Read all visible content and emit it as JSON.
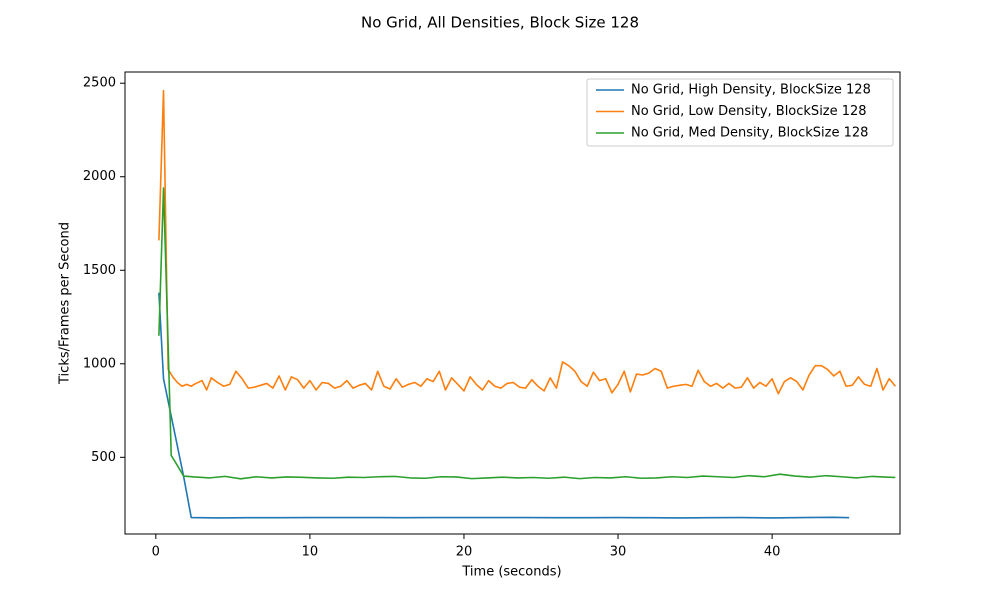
{
  "chart_data": {
    "type": "line",
    "title": "No Grid, All Densities, Block Size 128",
    "xlabel": "Time (seconds)",
    "ylabel": "Ticks/Frames per Second",
    "xlim": [
      -2.0,
      48.3
    ],
    "ylim": [
      90,
      2560
    ],
    "xticks": [
      0,
      10,
      20,
      30,
      40
    ],
    "yticks": [
      500,
      1000,
      1500,
      2000,
      2500
    ],
    "grid": false,
    "legend_position": "top-right",
    "series": [
      {
        "name": "No Grid, High Density, BlockSize 128",
        "color": "#1f77b4",
        "points": [
          [
            0.2,
            1380
          ],
          [
            0.5,
            920
          ],
          [
            1.8,
            400
          ],
          [
            2.3,
            178
          ],
          [
            4,
            176
          ],
          [
            6,
            177
          ],
          [
            8,
            177
          ],
          [
            10,
            178
          ],
          [
            12,
            178
          ],
          [
            14,
            178
          ],
          [
            16,
            177
          ],
          [
            18,
            178
          ],
          [
            20,
            178
          ],
          [
            22,
            178
          ],
          [
            24,
            178
          ],
          [
            26,
            177
          ],
          [
            28,
            177
          ],
          [
            30,
            178
          ],
          [
            32,
            177
          ],
          [
            34,
            176
          ],
          [
            36,
            177
          ],
          [
            38,
            178
          ],
          [
            40,
            176
          ],
          [
            42,
            178
          ],
          [
            44,
            179
          ],
          [
            45,
            177
          ]
        ]
      },
      {
        "name": "No Grid, Low Density, BlockSize 128",
        "color": "#ff7f0e",
        "points": [
          [
            0.2,
            1660
          ],
          [
            0.5,
            2460
          ],
          [
            0.8,
            970
          ],
          [
            1.1,
            930
          ],
          [
            1.4,
            900
          ],
          [
            1.7,
            880
          ],
          [
            2,
            890
          ],
          [
            2.3,
            880
          ],
          [
            2.6,
            895
          ],
          [
            3.0,
            910
          ],
          [
            3.3,
            860
          ],
          [
            3.6,
            925
          ],
          [
            4,
            900
          ],
          [
            4.4,
            880
          ],
          [
            4.8,
            890
          ],
          [
            5.2,
            960
          ],
          [
            5.6,
            920
          ],
          [
            6,
            870
          ],
          [
            6.4,
            875
          ],
          [
            6.8,
            885
          ],
          [
            7.2,
            895
          ],
          [
            7.6,
            870
          ],
          [
            8,
            935
          ],
          [
            8.4,
            860
          ],
          [
            8.8,
            930
          ],
          [
            9.2,
            915
          ],
          [
            9.6,
            870
          ],
          [
            10,
            910
          ],
          [
            10.4,
            860
          ],
          [
            10.8,
            900
          ],
          [
            11.2,
            895
          ],
          [
            11.6,
            870
          ],
          [
            12,
            880
          ],
          [
            12.4,
            910
          ],
          [
            12.8,
            870
          ],
          [
            13.2,
            885
          ],
          [
            13.6,
            895
          ],
          [
            14,
            860
          ],
          [
            14.4,
            960
          ],
          [
            14.8,
            880
          ],
          [
            15.2,
            865
          ],
          [
            15.6,
            920
          ],
          [
            16,
            875
          ],
          [
            16.4,
            890
          ],
          [
            16.8,
            900
          ],
          [
            17.2,
            880
          ],
          [
            17.6,
            920
          ],
          [
            18,
            905
          ],
          [
            18.4,
            960
          ],
          [
            18.8,
            860
          ],
          [
            19.2,
            925
          ],
          [
            19.6,
            890
          ],
          [
            20,
            855
          ],
          [
            20.4,
            930
          ],
          [
            20.8,
            890
          ],
          [
            21.2,
            860
          ],
          [
            21.6,
            910
          ],
          [
            22,
            880
          ],
          [
            22.4,
            870
          ],
          [
            22.8,
            895
          ],
          [
            23.2,
            900
          ],
          [
            23.6,
            875
          ],
          [
            24,
            870
          ],
          [
            24.4,
            915
          ],
          [
            24.8,
            880
          ],
          [
            25.2,
            855
          ],
          [
            25.6,
            925
          ],
          [
            26,
            870
          ],
          [
            26.4,
            1010
          ],
          [
            26.8,
            990
          ],
          [
            27.2,
            960
          ],
          [
            27.6,
            905
          ],
          [
            28,
            880
          ],
          [
            28.4,
            955
          ],
          [
            28.8,
            910
          ],
          [
            29.2,
            920
          ],
          [
            29.6,
            845
          ],
          [
            30,
            890
          ],
          [
            30.4,
            960
          ],
          [
            30.8,
            850
          ],
          [
            31.2,
            945
          ],
          [
            31.6,
            940
          ],
          [
            32,
            950
          ],
          [
            32.4,
            975
          ],
          [
            32.8,
            960
          ],
          [
            33.2,
            870
          ],
          [
            33.6,
            880
          ],
          [
            34,
            885
          ],
          [
            34.4,
            890
          ],
          [
            34.8,
            880
          ],
          [
            35.2,
            965
          ],
          [
            35.6,
            905
          ],
          [
            36,
            880
          ],
          [
            36.4,
            895
          ],
          [
            36.8,
            870
          ],
          [
            37.2,
            895
          ],
          [
            37.6,
            870
          ],
          [
            38,
            875
          ],
          [
            38.4,
            925
          ],
          [
            38.8,
            870
          ],
          [
            39.2,
            900
          ],
          [
            39.6,
            880
          ],
          [
            40,
            920
          ],
          [
            40.4,
            840
          ],
          [
            40.8,
            905
          ],
          [
            41.2,
            925
          ],
          [
            41.6,
            905
          ],
          [
            42,
            860
          ],
          [
            42.4,
            940
          ],
          [
            42.8,
            990
          ],
          [
            43.2,
            990
          ],
          [
            43.6,
            970
          ],
          [
            44,
            935
          ],
          [
            44.4,
            960
          ],
          [
            44.8,
            880
          ],
          [
            45.2,
            885
          ],
          [
            45.6,
            930
          ],
          [
            46,
            890
          ],
          [
            46.4,
            880
          ],
          [
            46.8,
            975
          ],
          [
            47.2,
            860
          ],
          [
            47.6,
            920
          ],
          [
            48.0,
            880
          ]
        ]
      },
      {
        "name": "No Grid, Med Density, BlockSize 128",
        "color": "#2ca02c",
        "points": [
          [
            0.2,
            1150
          ],
          [
            0.5,
            1940
          ],
          [
            0.8,
            1100
          ],
          [
            1.0,
            510
          ],
          [
            1.3,
            470
          ],
          [
            1.8,
            400
          ],
          [
            2.5,
            395
          ],
          [
            3.5,
            390
          ],
          [
            4.5,
            398
          ],
          [
            5.5,
            385
          ],
          [
            6.5,
            396
          ],
          [
            7.5,
            390
          ],
          [
            8.5,
            395
          ],
          [
            9.5,
            393
          ],
          [
            10.5,
            390
          ],
          [
            11.5,
            388
          ],
          [
            12.5,
            394
          ],
          [
            13.5,
            392
          ],
          [
            14.5,
            396
          ],
          [
            15.5,
            398
          ],
          [
            16.5,
            390
          ],
          [
            17.5,
            388
          ],
          [
            18.5,
            396
          ],
          [
            19.5,
            395
          ],
          [
            20.5,
            386
          ],
          [
            21.5,
            390
          ],
          [
            22.5,
            394
          ],
          [
            23.5,
            390
          ],
          [
            24.5,
            392
          ],
          [
            25.5,
            388
          ],
          [
            26.5,
            394
          ],
          [
            27.5,
            386
          ],
          [
            28.5,
            392
          ],
          [
            29.5,
            390
          ],
          [
            30.5,
            396
          ],
          [
            31.5,
            388
          ],
          [
            32.5,
            390
          ],
          [
            33.5,
            396
          ],
          [
            34.5,
            392
          ],
          [
            35.5,
            400
          ],
          [
            36.5,
            396
          ],
          [
            37.5,
            392
          ],
          [
            38.5,
            402
          ],
          [
            39.5,
            396
          ],
          [
            40.5,
            410
          ],
          [
            41.5,
            400
          ],
          [
            42.5,
            394
          ],
          [
            43.5,
            402
          ],
          [
            44.5,
            396
          ],
          [
            45.5,
            390
          ],
          [
            46.5,
            398
          ],
          [
            47.5,
            394
          ],
          [
            48.0,
            392
          ]
        ]
      }
    ]
  }
}
